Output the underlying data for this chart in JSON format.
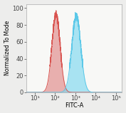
{
  "title": "",
  "xlabel": "FITC-A",
  "ylabel": "Normalized To Mode",
  "xlim_log": [
    0.6,
    5.3
  ],
  "ylim": [
    0,
    105
  ],
  "yticks": [
    0,
    20,
    40,
    60,
    80,
    100
  ],
  "xtick_positions": [
    1,
    2,
    3,
    4,
    5
  ],
  "xtick_labels": [
    "10¹",
    "10²",
    "10³",
    "10⁴",
    "10⁵"
  ],
  "red_peak_log_mean": 2.05,
  "red_peak_log_std": 0.2,
  "red_peak_max": 93,
  "blue_peak_log_mean": 3.05,
  "blue_peak_log_std": 0.22,
  "blue_peak_max": 91,
  "red_color": "#d9534f",
  "red_fill": "#e08888",
  "blue_color": "#5bc8e8",
  "blue_fill": "#7dd8f0",
  "background_color": "#ededec",
  "panel_color": "#f8f8f6",
  "font_size": 6,
  "label_font_size": 6,
  "noise_seed": 1234,
  "noise_amplitude": 2.5
}
